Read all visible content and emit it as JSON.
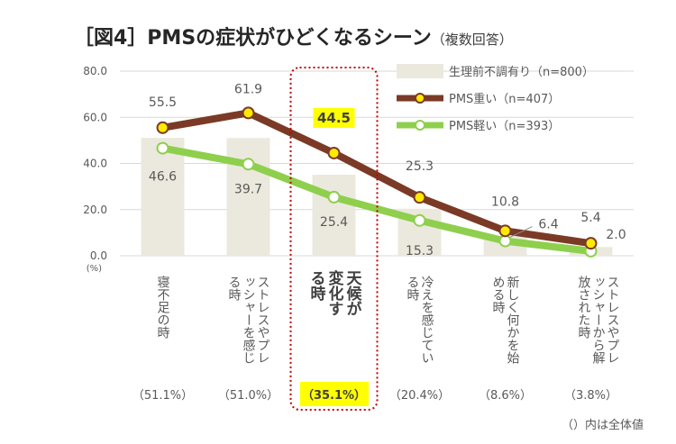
{
  "title": {
    "main": "［図4］PMSの症状がひどくなるシーン",
    "sub": "（複数回答）"
  },
  "footnote": "（）内は全体値",
  "colors": {
    "bar": "#ebe8dd",
    "heavy": "#7b3a26",
    "light": "#8fcf4e",
    "marker_heavy_fill": "#ffea00",
    "marker_light_fill": "#ffffff",
    "highlight_bg": "#ffff00",
    "highlight_border": "#c00000",
    "grid": "#d9d9d9",
    "text": "#595959"
  },
  "chart_data": {
    "type": "bar",
    "title": "［図4］PMSの症状がひどくなるシーン",
    "ylabel": "(%)",
    "ylim": [
      0,
      80
    ],
    "yticks": [
      "0.0",
      "20.0",
      "40.0",
      "60.0",
      "80.0"
    ],
    "categories": [
      "寝不足の時",
      "ストレスやプレッシャーを感じる時",
      "天候が変化する時",
      "冷えを感じている時",
      "新しく何かを始める時",
      "ストレスやプレッシャーから解放された時"
    ],
    "overall_labels": [
      "（51.1%）",
      "（51.0%）",
      "（35.1%）",
      "（20.4%）",
      "（8.6%）",
      "（3.8%）"
    ],
    "highlight_index": 2,
    "legend_position": "top-right",
    "series": [
      {
        "name": "生理前不調有り（n=800）",
        "kind": "bar",
        "values": [
          51.1,
          51.0,
          35.1,
          20.4,
          8.6,
          3.8
        ]
      },
      {
        "name": "PMS重い（n=407）",
        "kind": "line",
        "values": [
          55.5,
          61.9,
          44.5,
          25.3,
          10.8,
          5.4
        ],
        "labels": [
          "55.5",
          "61.9",
          "44.5",
          "25.3",
          "10.8",
          "5.4"
        ]
      },
      {
        "name": "PMS軽い（n=393）",
        "kind": "line",
        "values": [
          46.6,
          39.7,
          25.4,
          15.3,
          6.4,
          2.0
        ],
        "labels": [
          "46.6",
          "39.7",
          "25.4",
          "15.3",
          "6.4",
          "2.0"
        ]
      }
    ]
  }
}
